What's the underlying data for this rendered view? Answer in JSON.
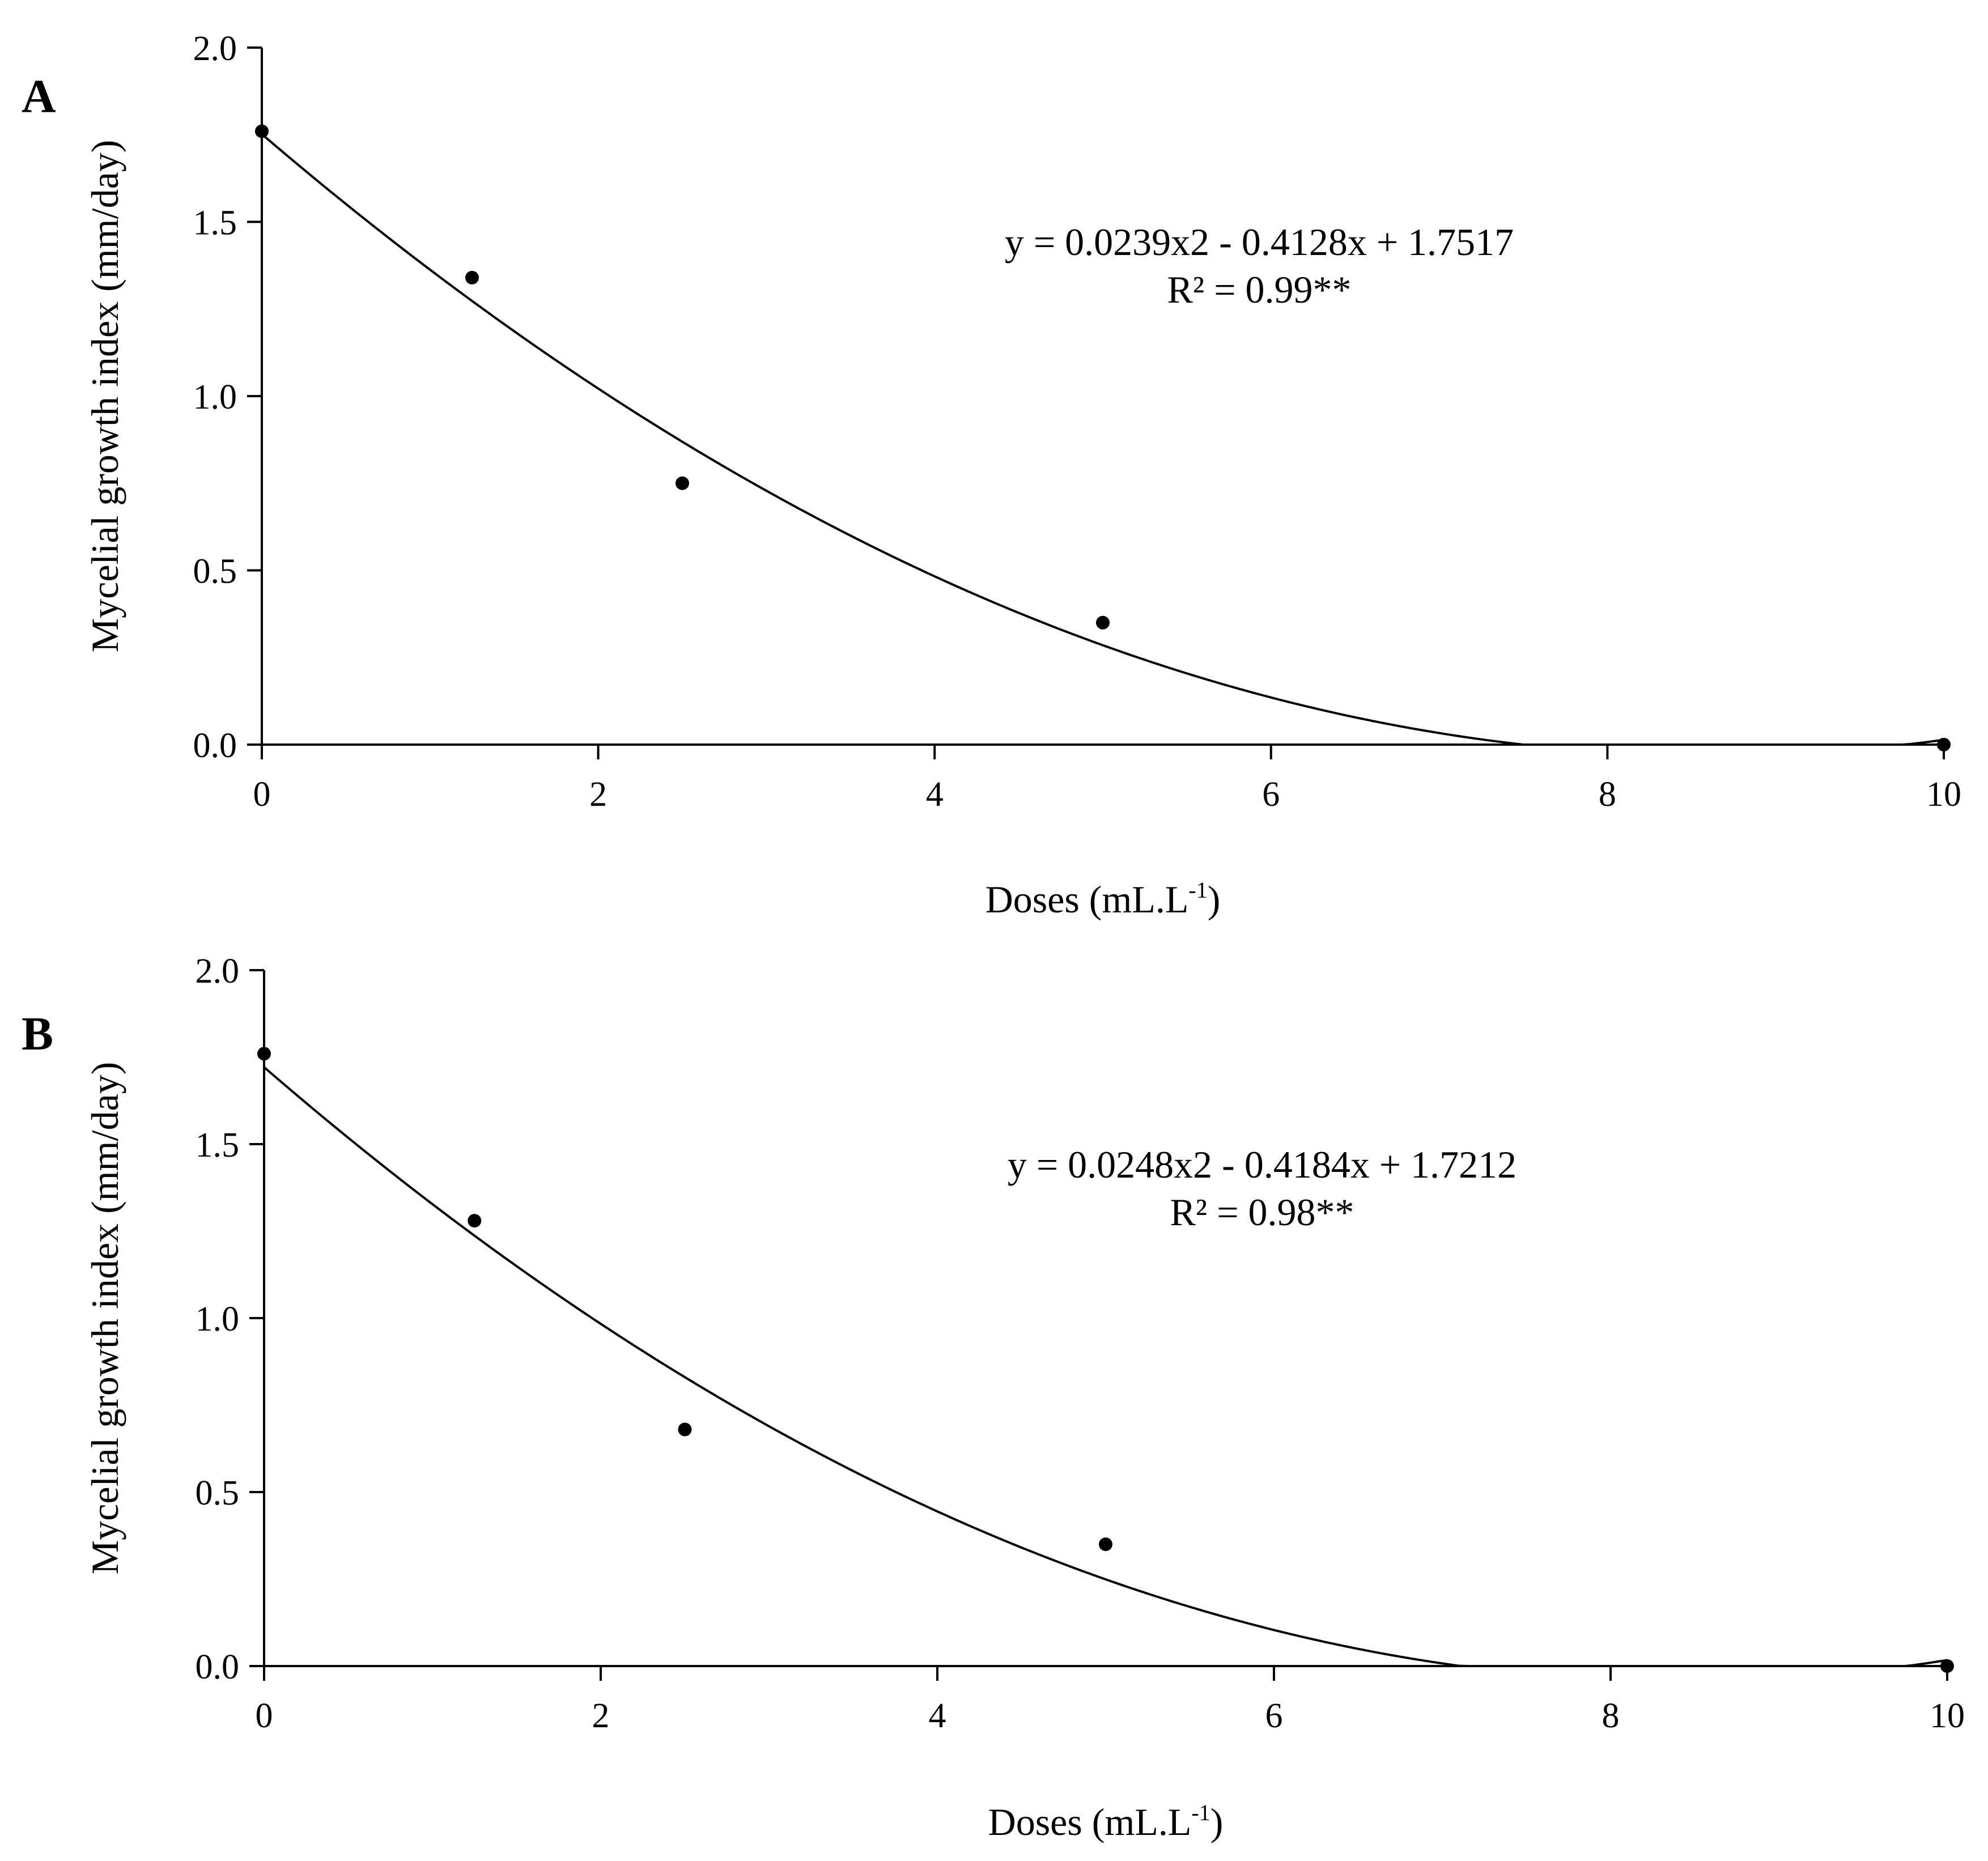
{
  "chart_data": [
    {
      "type": "scatter",
      "panel_label": "A",
      "ylabel": "Mycelial growth index (mm/day)",
      "xlabel": "Doses (mL.L",
      "xlabel_sup": "-1",
      "xlabel_end": ")",
      "xlim": [
        0,
        10
      ],
      "ylim": [
        0,
        2
      ],
      "x_ticks": [
        "0",
        "2",
        "4",
        "6",
        "8",
        "10"
      ],
      "y_ticks": [
        "0.0",
        "0.5",
        "1.0",
        "1.5",
        "2.0"
      ],
      "grid": false,
      "points": {
        "x": [
          0,
          1.25,
          2.5,
          5,
          10
        ],
        "y": [
          1.76,
          1.34,
          0.75,
          0.35,
          0.0
        ]
      },
      "fit": {
        "a": 0.0239,
        "b": -0.4128,
        "c": 1.7517
      },
      "equation": "y = 0.0239x2 - 0.4128x + 1.7517",
      "r2": "R² = 0.99**"
    },
    {
      "type": "scatter",
      "panel_label": "B",
      "ylabel": "Mycelial growth index (mm/day)",
      "xlabel": "Doses (mL.L",
      "xlabel_sup": "-1",
      "xlabel_end": ")",
      "xlim": [
        0,
        10
      ],
      "ylim": [
        0,
        2
      ],
      "x_ticks": [
        "0",
        "2",
        "4",
        "6",
        "8",
        "10"
      ],
      "y_ticks": [
        "0.0",
        "0.5",
        "1.0",
        "1.5",
        "2.0"
      ],
      "grid": false,
      "points": {
        "x": [
          0,
          1.25,
          2.5,
          5,
          10
        ],
        "y": [
          1.76,
          1.28,
          0.68,
          0.35,
          0.0
        ]
      },
      "fit": {
        "a": 0.0248,
        "b": -0.4184,
        "c": 1.7212
      },
      "equation": "y = 0.0248x2 - 0.4184x + 1.7212",
      "r2": "R² = 0.98**"
    }
  ]
}
